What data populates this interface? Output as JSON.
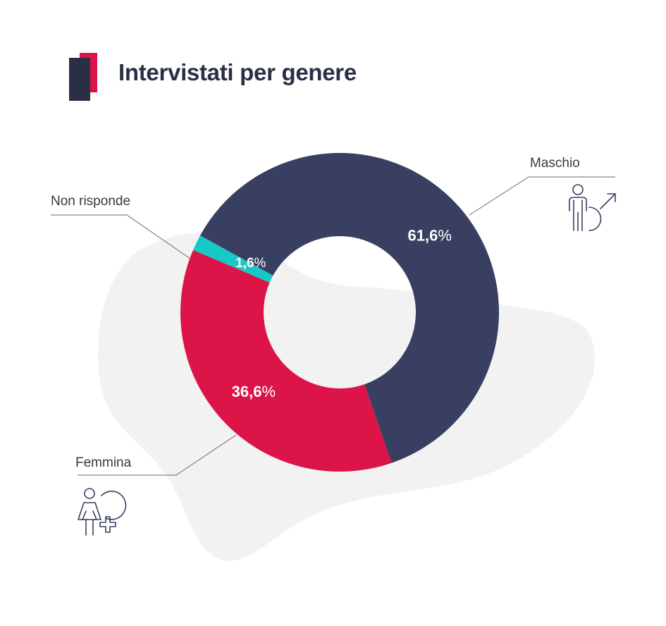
{
  "title": "Intervistati per genere",
  "chart_data": {
    "type": "pie",
    "donut": true,
    "title": "Intervistati per genere",
    "slices": [
      {
        "label": "Maschio",
        "value": 61.6,
        "display_number": "61,6",
        "display_sign": "%",
        "color": "#393f60"
      },
      {
        "label": "Femmina",
        "value": 36.6,
        "display_number": "36,6",
        "display_sign": "%",
        "color": "#dc1447"
      },
      {
        "label": "Non risponde",
        "value": 1.6,
        "display_number": "1,6",
        "display_sign": "%",
        "color": "#16c9c7"
      }
    ],
    "legend": "none",
    "label_placement": "outside with leader lines"
  },
  "colors": {
    "accent_red": "#dc1447",
    "dark": "#2a2f45",
    "blob": "#f2f2f3"
  },
  "icons": {
    "male": "male-person-icon",
    "female": "female-person-icon"
  }
}
